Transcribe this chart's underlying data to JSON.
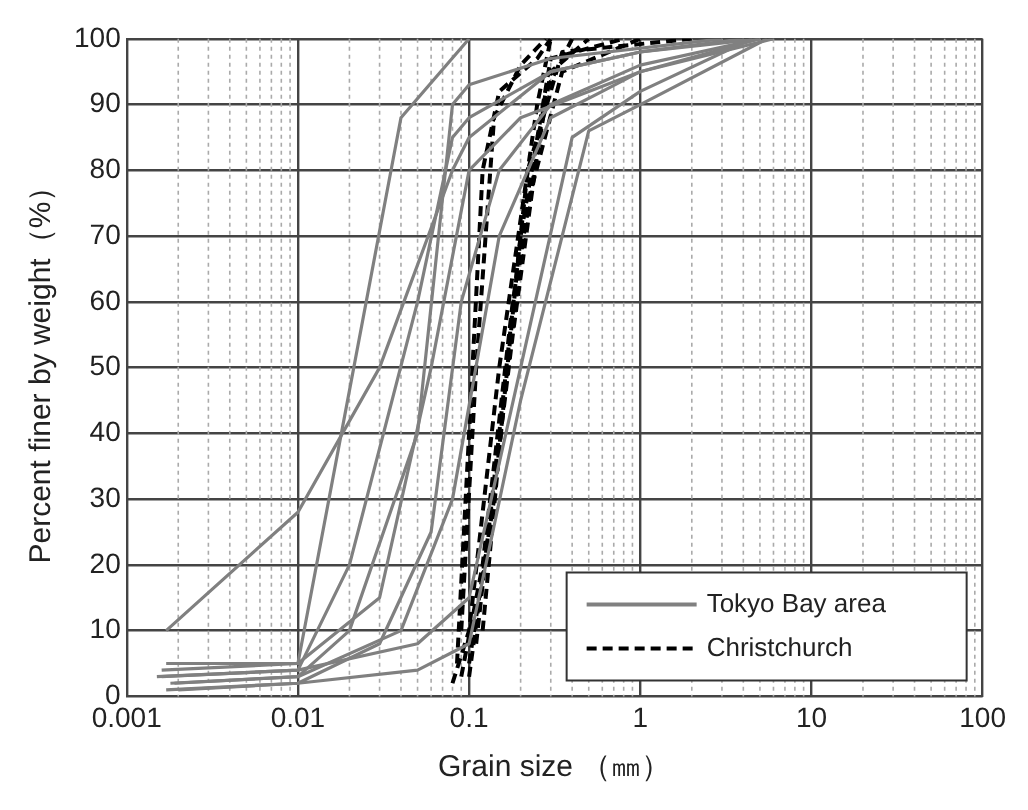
{
  "chart_data": {
    "type": "line",
    "xlabel": "Grain size （㎜）",
    "ylabel": "Percent finer by weight（%）",
    "log": "x",
    "xlim": [
      0.001,
      100
    ],
    "xticks": [
      0.001,
      0.01,
      0.1,
      1,
      10,
      100
    ],
    "ylim": [
      0,
      100
    ],
    "yticks": [
      0,
      10,
      20,
      30,
      40,
      50,
      60,
      70,
      80,
      90,
      100
    ],
    "grid": true,
    "legend": "bottom right",
    "marker": "none",
    "series": [
      {
        "name": "Tokyo Bay area",
        "color": "#808080",
        "line_style": "solid",
        "x": [
          0.0017,
          0.01,
          0.03,
          0.08,
          0.1,
          0.3,
          1,
          5
        ],
        "values": [
          10,
          28,
          50,
          80,
          85,
          95,
          98,
          100
        ]
      },
      {
        "color": "#808080",
        "line_style": "solid",
        "x": [
          0.0017,
          0.01,
          0.04,
          0.1
        ],
        "values": [
          5,
          5,
          88,
          100
        ]
      },
      {
        "color": "#808080",
        "line_style": "solid",
        "x": [
          0.0016,
          0.01,
          0.02,
          0.05,
          0.08,
          0.1,
          0.3,
          1,
          4
        ],
        "values": [
          3,
          4,
          20,
          60,
          85,
          88,
          95,
          98,
          100
        ]
      },
      {
        "color": "#808080",
        "line_style": "solid",
        "x": [
          0.0018,
          0.01,
          0.02,
          0.05,
          0.08,
          0.1,
          0.3,
          3
        ],
        "values": [
          2,
          3,
          10,
          40,
          90,
          93,
          97,
          100
        ]
      },
      {
        "color": "#808080",
        "line_style": "solid",
        "x": [
          0.0016,
          0.01,
          0.03,
          0.06,
          0.1,
          0.2,
          0.5,
          1,
          5
        ],
        "values": [
          4,
          5,
          15,
          50,
          80,
          88,
          92,
          95,
          100
        ]
      },
      {
        "color": "#808080",
        "line_style": "solid",
        "x": [
          0.0017,
          0.01,
          0.03,
          0.06,
          0.09,
          0.15,
          0.3,
          1,
          5
        ],
        "values": [
          1,
          2,
          8,
          25,
          60,
          80,
          90,
          96,
          100
        ]
      },
      {
        "color": "#808080",
        "line_style": "solid",
        "x": [
          0.0019,
          0.01,
          0.04,
          0.08,
          0.15,
          0.3,
          0.6,
          1,
          6
        ],
        "values": [
          2,
          3,
          10,
          30,
          70,
          88,
          92,
          95,
          100
        ]
      },
      {
        "color": "#808080",
        "line_style": "solid",
        "x": [
          0.0015,
          0.01,
          0.05,
          0.1,
          0.2,
          0.4,
          1,
          4.5
        ],
        "values": [
          3,
          4,
          8,
          15,
          50,
          85,
          92,
          100
        ]
      },
      {
        "color": "#808080",
        "line_style": "solid",
        "x": [
          0.002,
          0.01,
          0.05,
          0.1,
          0.2,
          0.5,
          1,
          5.5
        ],
        "values": [
          1,
          2,
          4,
          8,
          45,
          86,
          90,
          100
        ]
      },
      {
        "name": "Christchurch",
        "color": "#000000",
        "line_style": "dashed",
        "x": [
          0.08,
          0.1,
          0.15,
          0.25,
          0.3
        ],
        "values": [
          2,
          10,
          50,
          90,
          100
        ]
      },
      {
        "color": "#000000",
        "line_style": "dashed",
        "x": [
          0.09,
          0.12,
          0.18,
          0.3,
          0.5
        ],
        "values": [
          3,
          20,
          60,
          95,
          100
        ]
      },
      {
        "color": "#000000",
        "line_style": "dashed",
        "x": [
          0.1,
          0.14,
          0.2,
          0.3,
          0.8
        ],
        "values": [
          5,
          30,
          70,
          97,
          100
        ]
      },
      {
        "color": "#000000",
        "line_style": "dashed",
        "x": [
          0.085,
          0.1,
          0.12,
          0.15,
          0.25,
          0.3
        ],
        "values": [
          5,
          40,
          80,
          92,
          97,
          100
        ]
      },
      {
        "color": "#000000",
        "line_style": "dashed",
        "x": [
          0.11,
          0.15,
          0.22,
          0.35,
          2
        ],
        "values": [
          8,
          40,
          80,
          98,
          100
        ]
      },
      {
        "color": "#000000",
        "line_style": "dashed",
        "x": [
          0.09,
          0.11,
          0.14,
          0.2,
          0.28
        ],
        "values": [
          10,
          50,
          88,
          96,
          100
        ]
      },
      {
        "color": "#000000",
        "line_style": "dashed",
        "x": [
          0.1,
          0.13,
          0.18,
          0.28,
          0.4
        ],
        "values": [
          3,
          25,
          55,
          92,
          100
        ]
      },
      {
        "color": "#000000",
        "line_style": "dashed",
        "x": [
          0.12,
          0.16,
          0.22,
          0.35,
          1
        ],
        "values": [
          10,
          45,
          75,
          95,
          100
        ]
      }
    ]
  }
}
